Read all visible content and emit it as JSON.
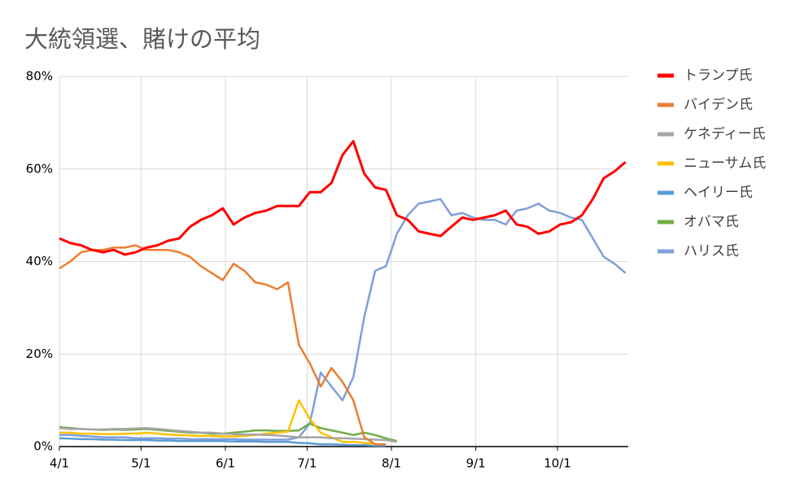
{
  "chart_data": {
    "type": "line",
    "title": "大統領選、賭けの平均",
    "x": [
      0,
      4,
      8,
      12,
      16,
      20,
      24,
      28,
      32,
      36,
      40,
      44,
      48,
      52,
      56,
      60,
      64,
      68,
      72,
      76,
      80,
      84,
      88,
      92,
      96,
      100,
      104,
      108,
      112,
      116,
      120,
      124,
      128,
      132,
      136,
      140,
      144,
      148,
      152,
      156,
      160,
      164,
      168,
      172,
      176,
      180,
      184,
      188,
      192,
      196,
      200,
      204,
      208
    ],
    "xlim": [
      0,
      209
    ],
    "xticks": [
      {
        "value": 0,
        "label": "4/1"
      },
      {
        "value": 30,
        "label": "5/1"
      },
      {
        "value": 61,
        "label": "6/1"
      },
      {
        "value": 91,
        "label": "7/1"
      },
      {
        "value": 122,
        "label": "8/1"
      },
      {
        "value": 153,
        "label": "9/1"
      },
      {
        "value": 183,
        "label": "10/1"
      }
    ],
    "ylim": [
      0,
      80
    ],
    "yticks": [
      {
        "value": 0,
        "label": "0%"
      },
      {
        "value": 20,
        "label": "20%"
      },
      {
        "value": 40,
        "label": "40%"
      },
      {
        "value": 60,
        "label": "60%"
      },
      {
        "value": 80,
        "label": "80%"
      }
    ],
    "grid": true,
    "legend": "right",
    "series": [
      {
        "name": "トランプ氏",
        "color": "#ff0000",
        "values": [
          45,
          44,
          43.5,
          42.5,
          42,
          42.5,
          41.5,
          42,
          43,
          43.5,
          44.5,
          45,
          47.5,
          49,
          50,
          51.5,
          48,
          49.5,
          50.5,
          51,
          52,
          52,
          52,
          55,
          55,
          57,
          63,
          66,
          59,
          56,
          55.5,
          50,
          49,
          46.5,
          46,
          45.5,
          47.5,
          49.5,
          49,
          49.5,
          50,
          51,
          48,
          47.5,
          46,
          46.5,
          48,
          48.5,
          50,
          53.5,
          58,
          59.5,
          61.5
        ]
      },
      {
        "name": "バイデン氏",
        "color": "#ed7d31",
        "values": [
          38.5,
          40,
          42,
          42.5,
          42.5,
          43,
          43,
          43.5,
          42.5,
          42.5,
          42.5,
          42,
          41,
          39,
          37.5,
          36,
          39.5,
          38,
          35.5,
          35,
          34,
          35.5,
          22,
          18,
          13,
          17,
          14,
          10,
          2,
          0.5,
          0.5,
          null,
          null,
          null,
          null,
          null,
          null,
          null,
          null,
          null,
          null,
          null,
          null,
          null,
          null,
          null,
          null,
          null,
          null,
          null,
          null,
          null,
          null
        ]
      },
      {
        "name": "ケネディー氏",
        "color": "#a5a5a5",
        "values": [
          4,
          3.8,
          3.8,
          3.7,
          3.7,
          3.8,
          3.8,
          3.9,
          4,
          3.8,
          3.6,
          3.4,
          3.2,
          3,
          3,
          2.8,
          2.7,
          2.6,
          2.6,
          2.5,
          2.4,
          2.2,
          2,
          2,
          2,
          1.8,
          1.8,
          1.7,
          1.6,
          1.5,
          1.4,
          1,
          null,
          null,
          null,
          null,
          null,
          null,
          null,
          null,
          null,
          null,
          null,
          null,
          null,
          null,
          null,
          null,
          null,
          null,
          null,
          null,
          null
        ]
      },
      {
        "name": "ニューサム氏",
        "color": "#ffc000",
        "values": [
          3,
          3,
          2.8,
          2.8,
          2.7,
          2.7,
          2.8,
          2.8,
          3,
          2.8,
          2.6,
          2.5,
          2.4,
          2.3,
          2.3,
          2.2,
          2.2,
          2.3,
          2.5,
          2.8,
          3,
          3.2,
          10,
          6,
          3,
          2,
          1,
          1,
          0.8,
          0.5,
          0.5,
          null,
          null,
          null,
          null,
          null,
          null,
          null,
          null,
          null,
          null,
          null,
          null,
          null,
          null,
          null,
          null,
          null,
          null,
          null,
          null,
          null,
          null
        ]
      },
      {
        "name": "ヘイリー氏",
        "color": "#5b9bd5",
        "values": [
          1.8,
          1.7,
          1.6,
          1.6,
          1.5,
          1.5,
          1.4,
          1.4,
          1.4,
          1.3,
          1.3,
          1.2,
          1.2,
          1.2,
          1.2,
          1.2,
          1.1,
          1.1,
          1.1,
          1,
          1,
          1,
          0.8,
          0.7,
          0.5,
          0.5,
          0.4,
          0.3,
          0.3,
          0.2,
          0.2,
          null,
          null,
          null,
          null,
          null,
          null,
          null,
          null,
          null,
          null,
          null,
          null,
          null,
          null,
          null,
          null,
          null,
          null,
          null,
          null,
          null,
          null
        ]
      },
      {
        "name": "オバマ氏",
        "color": "#70ad47",
        "values": [
          4.2,
          4,
          3.8,
          3.7,
          3.6,
          3.7,
          3.6,
          3.7,
          3.8,
          3.6,
          3.4,
          3.2,
          3,
          3,
          2.8,
          2.8,
          3,
          3.2,
          3.5,
          3.5,
          3.4,
          3.4,
          3.5,
          5,
          4,
          3.5,
          3,
          2.5,
          3,
          2.5,
          1.8,
          1.2,
          null,
          null,
          null,
          null,
          null,
          null,
          null,
          null,
          null,
          null,
          null,
          null,
          null,
          null,
          null,
          null,
          null,
          null,
          null,
          null,
          null
        ]
      },
      {
        "name": "ハリス氏",
        "color": "#7f9fd8",
        "values": [
          2.5,
          2.5,
          2.3,
          2.2,
          2,
          2,
          2,
          1.8,
          1.8,
          1.8,
          1.7,
          1.7,
          1.6,
          1.6,
          1.6,
          1.6,
          1.6,
          1.5,
          1.5,
          1.5,
          1.5,
          1.5,
          2,
          5,
          16,
          13,
          10,
          15,
          28,
          38,
          39,
          46,
          50,
          52.5,
          53,
          53.5,
          50,
          50.5,
          49.5,
          49,
          49,
          48,
          51,
          51.5,
          52.5,
          51,
          50.5,
          49.5,
          49,
          45,
          41,
          39.5,
          37.5
        ]
      }
    ]
  }
}
